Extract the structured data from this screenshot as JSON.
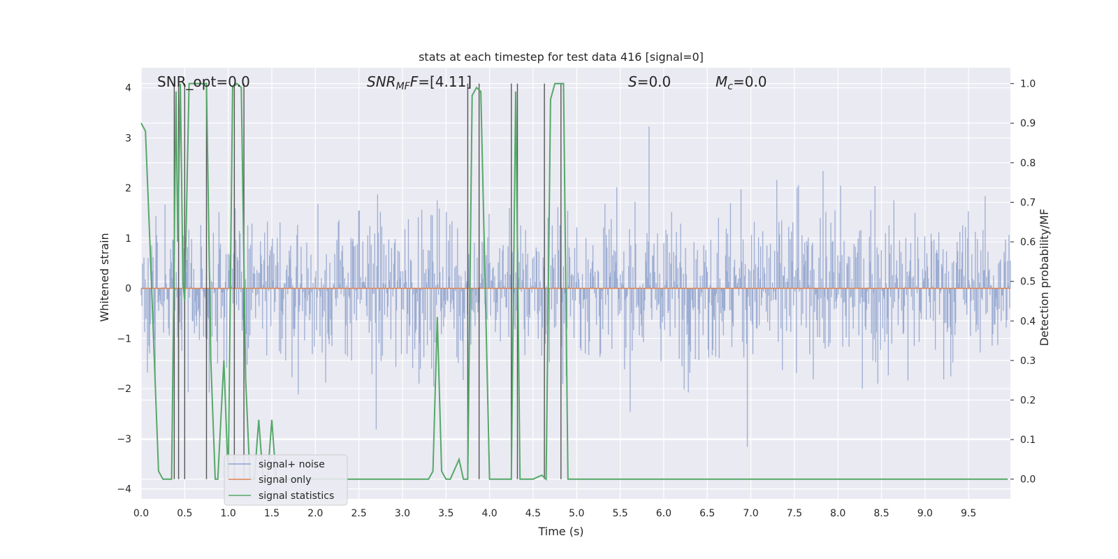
{
  "chart_data": {
    "type": "line",
    "title": "stats at each timestep for test data 416 [signal=0]",
    "xlabel": "Time (s)",
    "ylabel": "Whitened strain",
    "y2label": "Detection probability/MF",
    "xlim": [
      0,
      9.98
    ],
    "ylim": [
      -4.2,
      4.4
    ],
    "y2lim": [
      -0.05,
      1.04
    ],
    "xticks": [
      "0.0",
      "0.5",
      "1.0",
      "1.5",
      "2.0",
      "2.5",
      "3.0",
      "3.5",
      "4.0",
      "4.5",
      "5.0",
      "5.5",
      "6.0",
      "6.5",
      "7.0",
      "7.5",
      "8.0",
      "8.5",
      "9.0",
      "9.5"
    ],
    "yticks": [
      "−4",
      "−3",
      "−2",
      "−1",
      "0",
      "1",
      "2",
      "3",
      "4"
    ],
    "y2ticks": [
      "0.0",
      "0.1",
      "0.2",
      "0.3",
      "0.4",
      "0.5",
      "0.6",
      "0.7",
      "0.8",
      "0.9",
      "1.0"
    ],
    "grid": true,
    "legend_placement": "lower-left",
    "annotations": {
      "snr_opt": "SNR_opt=0.0",
      "snr_mf_var": "SNR",
      "snr_mf_sub": "MF",
      "snr_mf_val": "=[4.11]",
      "s_var": "S",
      "s_val": "=0.0",
      "mc_var": "M",
      "mc_sub": "c",
      "mc_val": "=0.0"
    },
    "series": [
      {
        "name": "signal+ noise",
        "color": "#8ea2cc",
        "kind": "noise",
        "amplitude_envelope": [
          -3.4,
          4.0
        ]
      },
      {
        "name": "signal only",
        "color": "#dd8452",
        "values_constant": 0.0
      },
      {
        "name": "signal statistics",
        "color": "#55a868",
        "axis": "right",
        "x": [
          0.0,
          0.05,
          0.1,
          0.2,
          0.25,
          0.35,
          0.4,
          0.42,
          0.45,
          0.48,
          0.5,
          0.55,
          0.6,
          0.75,
          0.8,
          0.85,
          0.88,
          0.95,
          1.0,
          1.05,
          1.1,
          1.15,
          1.2,
          1.25,
          1.3,
          1.35,
          1.4,
          1.45,
          1.5,
          1.55,
          1.6,
          3.3,
          3.35,
          3.4,
          3.45,
          3.5,
          3.55,
          3.65,
          3.7,
          3.75,
          3.8,
          3.85,
          3.9,
          4.0,
          4.05,
          4.15,
          4.25,
          4.3,
          4.35,
          4.4,
          4.5,
          4.6,
          4.65,
          4.7,
          4.75,
          4.8,
          4.85,
          4.9,
          9.95
        ],
        "values": [
          0.9,
          0.88,
          0.6,
          0.02,
          0.0,
          0.0,
          0.98,
          0.6,
          1.0,
          0.5,
          0.45,
          1.0,
          1.0,
          1.0,
          0.3,
          0.0,
          0.0,
          0.3,
          0.0,
          0.99,
          1.0,
          0.99,
          0.25,
          0.0,
          0.0,
          0.15,
          0.0,
          0.0,
          0.15,
          0.0,
          0.0,
          0.0,
          0.02,
          0.41,
          0.02,
          0.0,
          0.0,
          0.05,
          0.0,
          0.0,
          0.97,
          0.99,
          0.98,
          0.0,
          0.0,
          0.0,
          0.0,
          0.98,
          0.0,
          0.0,
          0.0,
          0.01,
          0.0,
          0.96,
          1.0,
          1.0,
          1.0,
          0.0,
          0.0
        ]
      }
    ],
    "vertical_lines_x": [
      0.38,
      0.43,
      0.5,
      0.75,
      1.07,
      1.18,
      3.75,
      3.88,
      4.25,
      4.32,
      4.63,
      4.82
    ]
  }
}
